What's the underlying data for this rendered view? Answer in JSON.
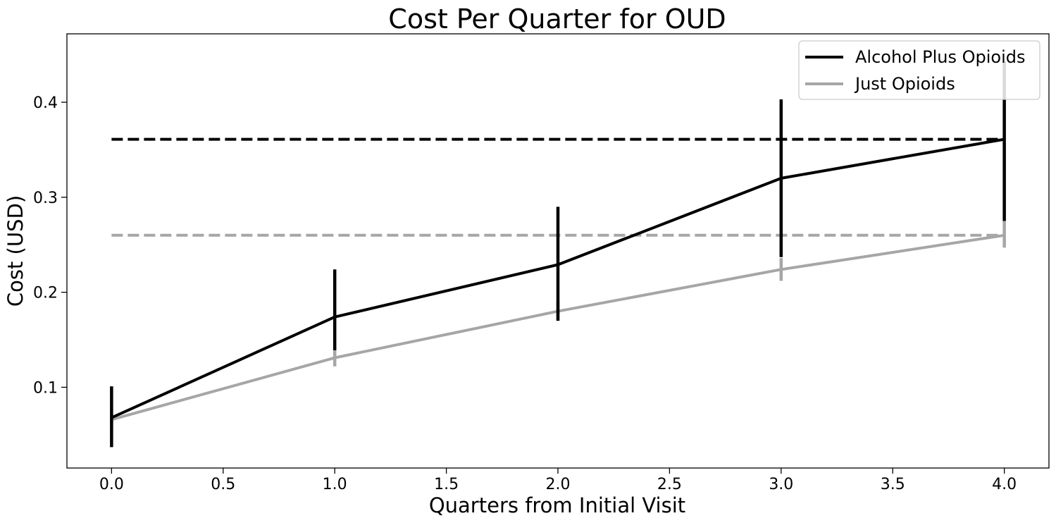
{
  "chart_data": {
    "type": "line",
    "title": "Cost Per Quarter for OUD",
    "xlabel": "Quarters from Initial Visit",
    "ylabel": "Cost (USD)",
    "xlim": [
      -0.2,
      4.2
    ],
    "ylim": [
      0.015,
      0.472
    ],
    "xticks": [
      0.0,
      0.5,
      1.0,
      1.5,
      2.0,
      2.5,
      3.0,
      3.5,
      4.0
    ],
    "xtick_labels": [
      "0.0",
      "0.5",
      "1.0",
      "1.5",
      "2.0",
      "2.5",
      "3.0",
      "3.5",
      "4.0"
    ],
    "yticks": [
      0.1,
      0.2,
      0.3,
      0.4
    ],
    "ytick_labels": [
      "0.1",
      "0.2",
      "0.3",
      "0.4"
    ],
    "grid": false,
    "legend_position": "top-right",
    "x": [
      0,
      1,
      2,
      3,
      4
    ],
    "series": [
      {
        "name": "Alcohol Plus Opioids",
        "color": "#000000",
        "values": [
          0.068,
          0.174,
          0.229,
          0.32,
          0.361
        ],
        "err_low": [
          0.037,
          0.139,
          0.17,
          0.237,
          0.275
        ],
        "err_high": [
          0.101,
          0.224,
          0.29,
          0.403,
          0.443
        ],
        "reference_line": 0.361
      },
      {
        "name": "Just Opioids",
        "color": "#a6a6a6",
        "values": [
          0.066,
          0.131,
          0.18,
          0.224,
          0.26
        ],
        "err_low": [
          0.06,
          0.122,
          0.171,
          0.212,
          0.247
        ],
        "err_high": [
          0.072,
          0.14,
          0.19,
          0.236,
          0.275
        ],
        "reference_line": 0.26
      }
    ]
  }
}
